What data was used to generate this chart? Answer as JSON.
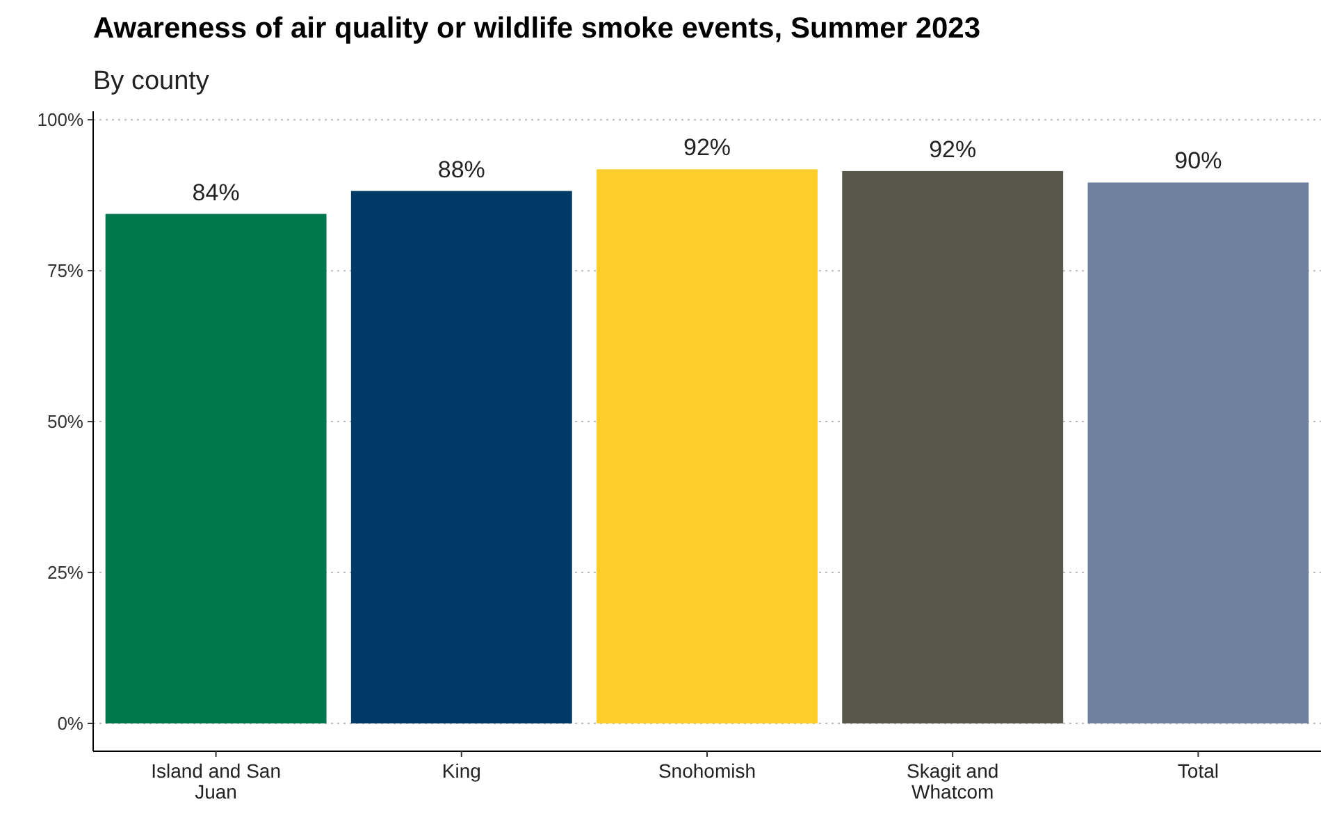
{
  "chart_data": {
    "type": "bar",
    "title": "Awareness of air quality or wildlife smoke events, Summer 2023",
    "subtitle": "By county",
    "categories": [
      "Island and San Juan",
      "King",
      "Snohomish",
      "Skagit and Whatcom",
      "Total"
    ],
    "values": [
      84.4,
      88.2,
      91.8,
      91.5,
      89.6
    ],
    "value_labels": [
      "84%",
      "88%",
      "92%",
      "92%",
      "90%"
    ],
    "colors": [
      "#00784e",
      "#003a66",
      "#fdce2a",
      "#57574a",
      "#6e82a0"
    ],
    "ylim": [
      -4.6,
      101.4
    ],
    "yticks": [
      {
        "value": 0,
        "label": "0%"
      },
      {
        "value": 25,
        "label": "25%"
      },
      {
        "value": 50,
        "label": "50%"
      },
      {
        "value": 75,
        "label": "75%"
      },
      {
        "value": 100,
        "label": "100%"
      }
    ],
    "grid": "y"
  }
}
